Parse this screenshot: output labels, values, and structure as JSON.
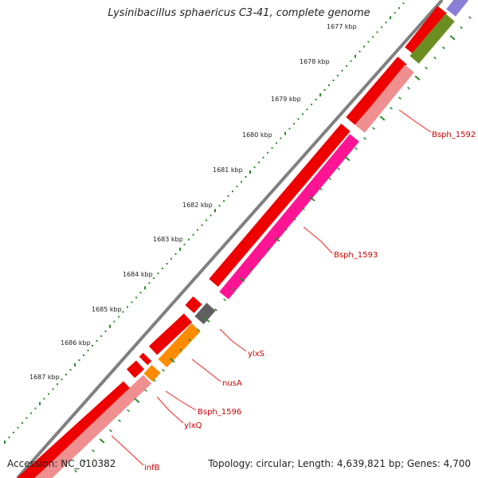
{
  "map": {
    "title": "Lysinibacillus sphaericus C3-41, complete genome",
    "accession": "Accession: NC_010382",
    "topology": "Topology: circular; Length: 4,639,821 bp; Genes: 4,700"
  },
  "ticks": [
    "1677 kbp",
    "1678 kbp",
    "1679 kbp",
    "1680 kbp",
    "1681 kbp",
    "1682 kbp",
    "1683 kbp",
    "1684 kbp",
    "1685 kbp",
    "1686 kbp",
    "1687 kbp"
  ],
  "gene_labels": [
    "Bsph_1592",
    "Bsph_1593",
    "ylxS",
    "nusA",
    "Bsph_1596",
    "ylxQ",
    "infB"
  ],
  "colors": {
    "backbone": "#7f7f7f",
    "strand": "#e8000a",
    "pink": "#ff1493",
    "salmon": "#f08f8f",
    "orange": "#ff8c00",
    "olive": "#6b8e23",
    "gray": "#606060",
    "purple": "#8a7fd6",
    "ticks": "#2a8a2a",
    "label": "#cc0000"
  }
}
